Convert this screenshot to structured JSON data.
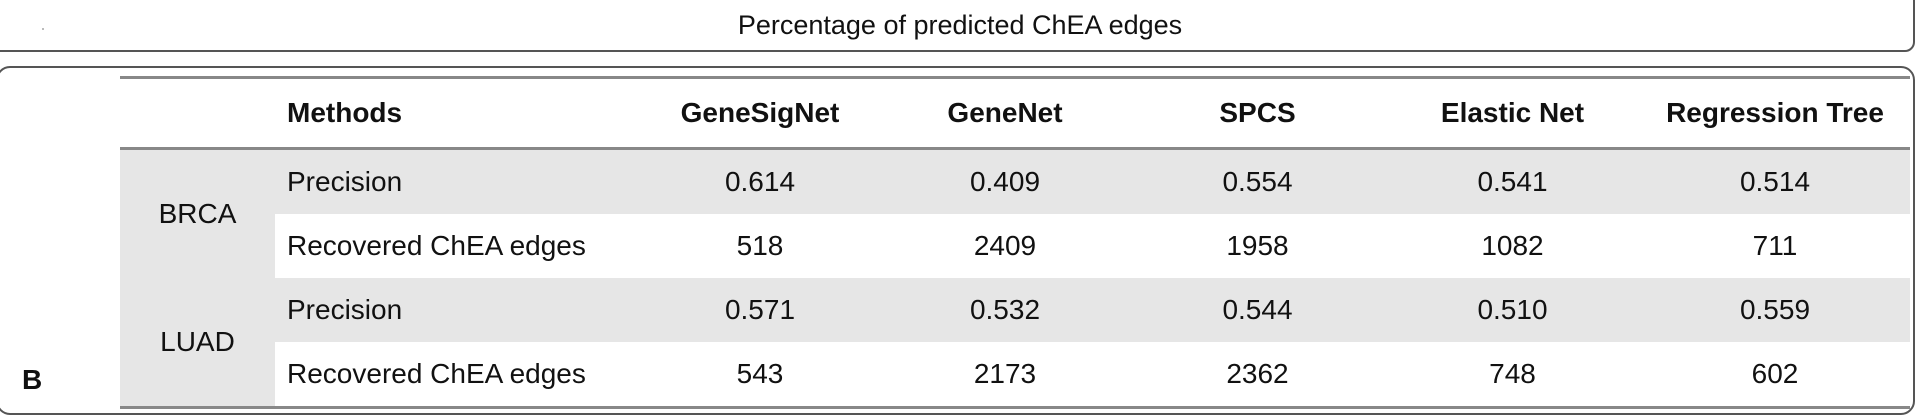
{
  "caption": "Percentage of predicted ChEA edges",
  "panel_label": "B",
  "table": {
    "headers": [
      "Methods",
      "GeneSigNet",
      "GeneNet",
      "SPCS",
      "Elastic Net",
      "Regression Tree"
    ],
    "groups": [
      {
        "name": "BRCA",
        "rows": [
          {
            "label": "Precision",
            "values": [
              "0.614",
              "0.409",
              "0.554",
              "0.541",
              "0.514"
            ]
          },
          {
            "label": "Recovered ChEA edges",
            "values": [
              "518",
              "2409",
              "1958",
              "1082",
              "711"
            ]
          }
        ]
      },
      {
        "name": "LUAD",
        "rows": [
          {
            "label": "Precision",
            "values": [
              "0.571",
              "0.532",
              "0.544",
              "0.510",
              "0.559"
            ]
          },
          {
            "label": "Recovered ChEA edges",
            "values": [
              "543",
              "2173",
              "2362",
              "748",
              "602"
            ]
          }
        ]
      }
    ]
  }
}
